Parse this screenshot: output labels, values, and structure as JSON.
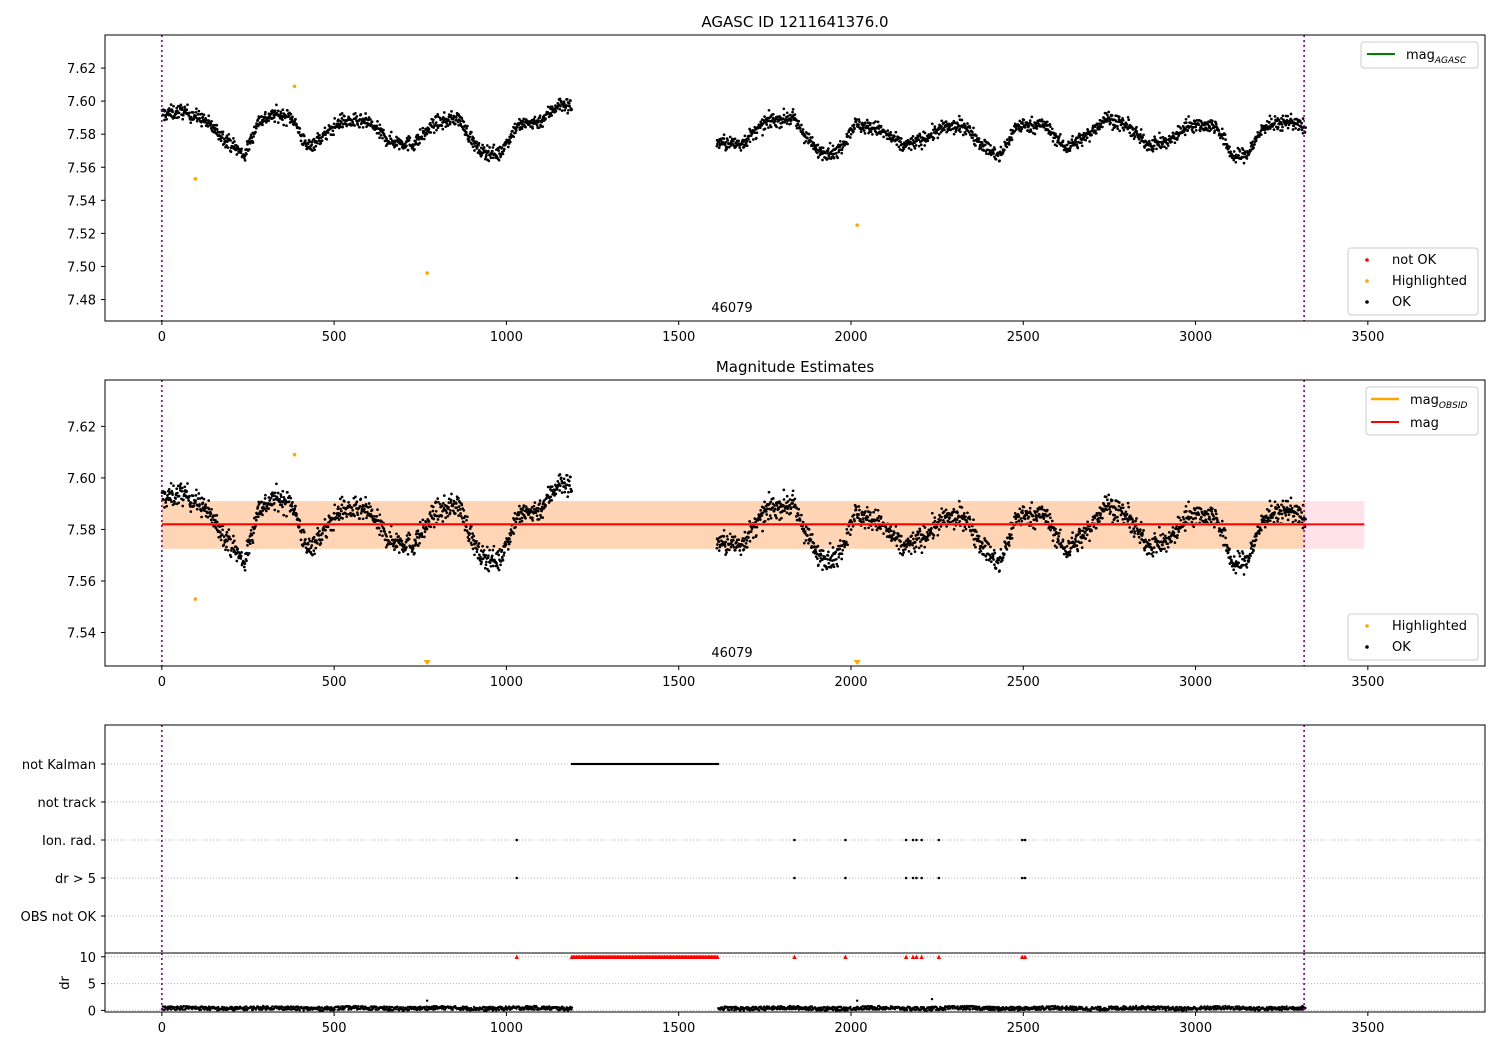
{
  "chart_data": [
    {
      "type": "scatter",
      "title": "AGASC ID 1211641376.0",
      "xlabel": "",
      "ylabel": "",
      "xlim": [
        -165,
        3840
      ],
      "ylim": [
        7.467,
        7.64
      ],
      "xticks": [
        0,
        500,
        1000,
        1500,
        2000,
        2500,
        3000,
        3500
      ],
      "yticks": [
        7.48,
        7.5,
        7.52,
        7.54,
        7.56,
        7.58,
        7.6,
        7.62
      ],
      "obsid_label": "46079",
      "vlines": [
        0,
        3315
      ],
      "legend_top": {
        "position": "top-right",
        "entries": [
          {
            "label": "mag",
            "subscript": "AGASC",
            "color": "#008000"
          }
        ]
      },
      "legend_bottom": {
        "position": "bottom-right",
        "entries": [
          {
            "label": "not OK",
            "color": "#ff0000"
          },
          {
            "label": "Highlighted",
            "color": "#ffa500"
          },
          {
            "label": "OK",
            "color": "#000000"
          }
        ]
      },
      "highlighted_points": [
        [
          97,
          7.553
        ],
        [
          385,
          7.609
        ],
        [
          770,
          7.496
        ],
        [
          2018,
          7.525
        ]
      ],
      "segments": [
        {
          "x0": 0,
          "x1": 1190,
          "trend": [
            [
              0,
              7.592
            ],
            [
              60,
              7.594
            ],
            [
              120,
              7.589
            ],
            [
              180,
              7.578
            ],
            [
              240,
              7.567
            ],
            [
              280,
              7.588
            ],
            [
              330,
              7.592
            ],
            [
              380,
              7.59
            ],
            [
              420,
              7.572
            ],
            [
              470,
              7.579
            ],
            [
              520,
              7.588
            ],
            [
              600,
              7.587
            ],
            [
              660,
              7.576
            ],
            [
              730,
              7.574
            ],
            [
              790,
              7.586
            ],
            [
              860,
              7.59
            ],
            [
              920,
              7.57
            ],
            [
              980,
              7.568
            ],
            [
              1030,
              7.585
            ],
            [
              1100,
              7.588
            ],
            [
              1150,
              7.598
            ],
            [
              1190,
              7.597
            ]
          ]
        },
        {
          "x0": 1610,
          "x1": 3320,
          "trend": [
            [
              1610,
              7.575
            ],
            [
              1680,
              7.574
            ],
            [
              1760,
              7.588
            ],
            [
              1830,
              7.59
            ],
            [
              1900,
              7.57
            ],
            [
              1960,
              7.569
            ],
            [
              2010,
              7.586
            ],
            [
              2080,
              7.583
            ],
            [
              2150,
              7.573
            ],
            [
              2200,
              7.576
            ],
            [
              2270,
              7.584
            ],
            [
              2330,
              7.585
            ],
            [
              2380,
              7.574
            ],
            [
              2430,
              7.566
            ],
            [
              2480,
              7.585
            ],
            [
              2560,
              7.586
            ],
            [
              2620,
              7.572
            ],
            [
              2680,
              7.578
            ],
            [
              2740,
              7.59
            ],
            [
              2800,
              7.585
            ],
            [
              2860,
              7.574
            ],
            [
              2920,
              7.575
            ],
            [
              2980,
              7.586
            ],
            [
              3060,
              7.585
            ],
            [
              3110,
              7.566
            ],
            [
              3150,
              7.568
            ],
            [
              3200,
              7.585
            ],
            [
              3280,
              7.588
            ],
            [
              3320,
              7.583
            ]
          ]
        }
      ]
    },
    {
      "type": "scatter",
      "title": "Magnitude Estimates",
      "xlabel": "",
      "ylabel": "",
      "xlim": [
        -165,
        3840
      ],
      "ylim": [
        7.527,
        7.638
      ],
      "xticks": [
        0,
        500,
        1000,
        1500,
        2000,
        2500,
        3000,
        3500
      ],
      "yticks": [
        7.54,
        7.56,
        7.58,
        7.6,
        7.62
      ],
      "obsid_label": "46079",
      "vlines": [
        0,
        3315
      ],
      "mag_line": 7.582,
      "mag_band": [
        7.5725,
        7.591
      ],
      "obsid_band": [
        7.5725,
        7.591
      ],
      "obsid_band_x": [
        0,
        3320
      ],
      "mag_line_x": [
        0,
        3490
      ],
      "legend_top": {
        "position": "top-right",
        "entries": [
          {
            "label": "mag",
            "subscript": "OBSID",
            "color": "#ffa500"
          },
          {
            "label": "mag",
            "subscript": "",
            "color": "#ff0000"
          }
        ]
      },
      "legend_bottom": {
        "position": "bottom-right",
        "entries": [
          {
            "label": "Highlighted",
            "color": "#ffa500"
          },
          {
            "label": "OK",
            "color": "#000000"
          }
        ]
      },
      "highlighted_points": [
        [
          97,
          7.553
        ],
        [
          385,
          7.609
        ]
      ],
      "offscale_markers": [
        770,
        2018
      ]
    },
    {
      "type": "scatter",
      "title": "",
      "xlim": [
        -165,
        3840
      ],
      "categories": [
        "not Kalman",
        "not track",
        "Ion. rad.",
        "dr > 5",
        "OBS not OK"
      ],
      "flag_ranges": {
        "not Kalman": [
          [
            1190,
            1615
          ]
        ]
      },
      "flag_points": {
        "Ion. rad.": [
          1030,
          1836,
          1984,
          2160,
          2180,
          2190,
          2205,
          2255,
          2497,
          2505
        ],
        "dr > 5": [
          1030,
          1836,
          1984,
          2160,
          2180,
          2190,
          2205,
          2255,
          2497,
          2505
        ]
      },
      "vlines": [
        0,
        3315
      ]
    },
    {
      "type": "scatter",
      "title": "",
      "ylabel": "dr",
      "xlim": [
        -165,
        3840
      ],
      "ylim": [
        -0.3,
        10.7
      ],
      "xticks": [
        0,
        500,
        1000,
        1500,
        2000,
        2500,
        3000,
        3500
      ],
      "yticks": [
        0,
        5,
        10
      ],
      "vlines": [
        0,
        3315
      ],
      "clipped_value": 10,
      "clipped_ranges": [
        [
          1190,
          1615
        ]
      ],
      "clipped_points": [
        1030,
        1836,
        1984,
        2160,
        2180,
        2190,
        2205,
        2255,
        2497,
        2505
      ],
      "spikes": [
        [
          770,
          1.8
        ],
        [
          2018,
          1.8
        ],
        [
          2235,
          2.1
        ]
      ],
      "segments": [
        [
          0,
          1190
        ],
        [
          1615,
          3320
        ]
      ],
      "baseline": 0.4
    }
  ]
}
